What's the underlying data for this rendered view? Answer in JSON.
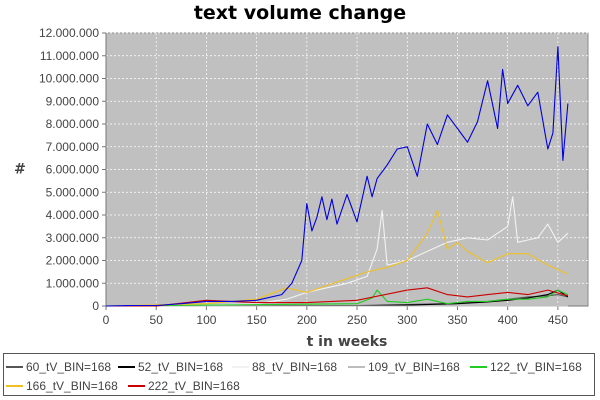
{
  "chart_data": {
    "type": "line",
    "title": "text volume change",
    "xlabel": "t in weeks",
    "ylabel": "#",
    "xlim": [
      0,
      480
    ],
    "ylim": [
      0,
      12000000
    ],
    "x_ticks": [
      "0",
      "50",
      "100",
      "150",
      "200",
      "250",
      "300",
      "350",
      "400",
      "450"
    ],
    "y_ticks": [
      "0",
      "1.000.000",
      "2.000.000",
      "3.000.000",
      "4.000.000",
      "5.000.000",
      "6.000.000",
      "7.000.000",
      "8.000.000",
      "9.000.000",
      "10.000.000",
      "11.000.000",
      "12.000.000"
    ],
    "grid": true,
    "legend_position": "bottom",
    "series": [
      {
        "name": "60_tV_BIN=168",
        "color": "#555555",
        "x": [
          0,
          250,
          300,
          350,
          380,
          400,
          420,
          440,
          450,
          460
        ],
        "y": [
          0,
          20000,
          60000,
          120000,
          200000,
          300000,
          400000,
          450000,
          500000,
          400000
        ]
      },
      {
        "name": "52_tV_BIN=168",
        "color": "#000000",
        "x": [
          0,
          250,
          300,
          350,
          380,
          400,
          420,
          440,
          450,
          460
        ],
        "y": [
          0,
          10000,
          40000,
          100000,
          180000,
          250000,
          350000,
          500000,
          700000,
          400000
        ]
      },
      {
        "name": "88_tV_BIN=168",
        "color": "#f2f2f2",
        "x": [
          0,
          100,
          150,
          180,
          200,
          220,
          240,
          260,
          270,
          275,
          280,
          300,
          320,
          340,
          360,
          380,
          400,
          405,
          410,
          420,
          430,
          440,
          450,
          460
        ],
        "y": [
          0,
          50000,
          100000,
          300000,
          600000,
          800000,
          1000000,
          1300000,
          2500000,
          4200000,
          1800000,
          2000000,
          2400000,
          2800000,
          3000000,
          2900000,
          3500000,
          4800000,
          2800000,
          2900000,
          3000000,
          3600000,
          2800000,
          3200000
        ]
      },
      {
        "name": "109_tV_BIN=168",
        "color": "#bcbcbc",
        "x": [
          0,
          460
        ],
        "y": [
          0,
          0
        ]
      },
      {
        "name": "122_tV_BIN=168",
        "color": "#22cc22",
        "x": [
          0,
          250,
          265,
          270,
          280,
          300,
          320,
          340,
          360,
          380,
          400,
          420,
          440,
          450,
          460
        ],
        "y": [
          0,
          100000,
          350000,
          700000,
          200000,
          150000,
          300000,
          100000,
          200000,
          200000,
          300000,
          300000,
          400000,
          700000,
          500000
        ]
      },
      {
        "name": "166_tV_BIN=168",
        "color": "#f0c020",
        "x": [
          0,
          100,
          150,
          180,
          200,
          220,
          240,
          260,
          280,
          300,
          320,
          330,
          340,
          350,
          360,
          380,
          400,
          420,
          440,
          450,
          460
        ],
        "y": [
          0,
          100000,
          300000,
          800000,
          600000,
          900000,
          1200000,
          1500000,
          1700000,
          2000000,
          3200000,
          4200000,
          2500000,
          2800000,
          2400000,
          1900000,
          2300000,
          2300000,
          1800000,
          1600000,
          1400000
        ]
      },
      {
        "name": "222_tV_BIN=168",
        "color": "#cc0000",
        "x": [
          0,
          50,
          100,
          150,
          200,
          250,
          300,
          320,
          340,
          360,
          380,
          400,
          420,
          440,
          460
        ],
        "y": [
          0,
          0,
          250000,
          150000,
          150000,
          250000,
          700000,
          800000,
          500000,
          400000,
          500000,
          600000,
          500000,
          700000,
          450000
        ]
      },
      {
        "name": "",
        "color": "#0000dd",
        "x": [
          0,
          25,
          50,
          75,
          100,
          125,
          150,
          175,
          185,
          195,
          200,
          205,
          210,
          215,
          220,
          225,
          230,
          240,
          250,
          260,
          265,
          270,
          280,
          290,
          300,
          310,
          320,
          330,
          340,
          350,
          360,
          370,
          380,
          390,
          395,
          400,
          410,
          420,
          430,
          440,
          445,
          450,
          455,
          460
        ],
        "y": [
          0,
          20000,
          20000,
          100000,
          200000,
          200000,
          250000,
          500000,
          1000000,
          2000000,
          4500000,
          3300000,
          3900000,
          4800000,
          3800000,
          4700000,
          3600000,
          4900000,
          3700000,
          5700000,
          4800000,
          5600000,
          6200000,
          6900000,
          7000000,
          5700000,
          8000000,
          7100000,
          8400000,
          7800000,
          7200000,
          8100000,
          9900000,
          7800000,
          10400000,
          8900000,
          9700000,
          8800000,
          9400000,
          6900000,
          7600000,
          11400000,
          6400000,
          8900000
        ]
      }
    ]
  }
}
